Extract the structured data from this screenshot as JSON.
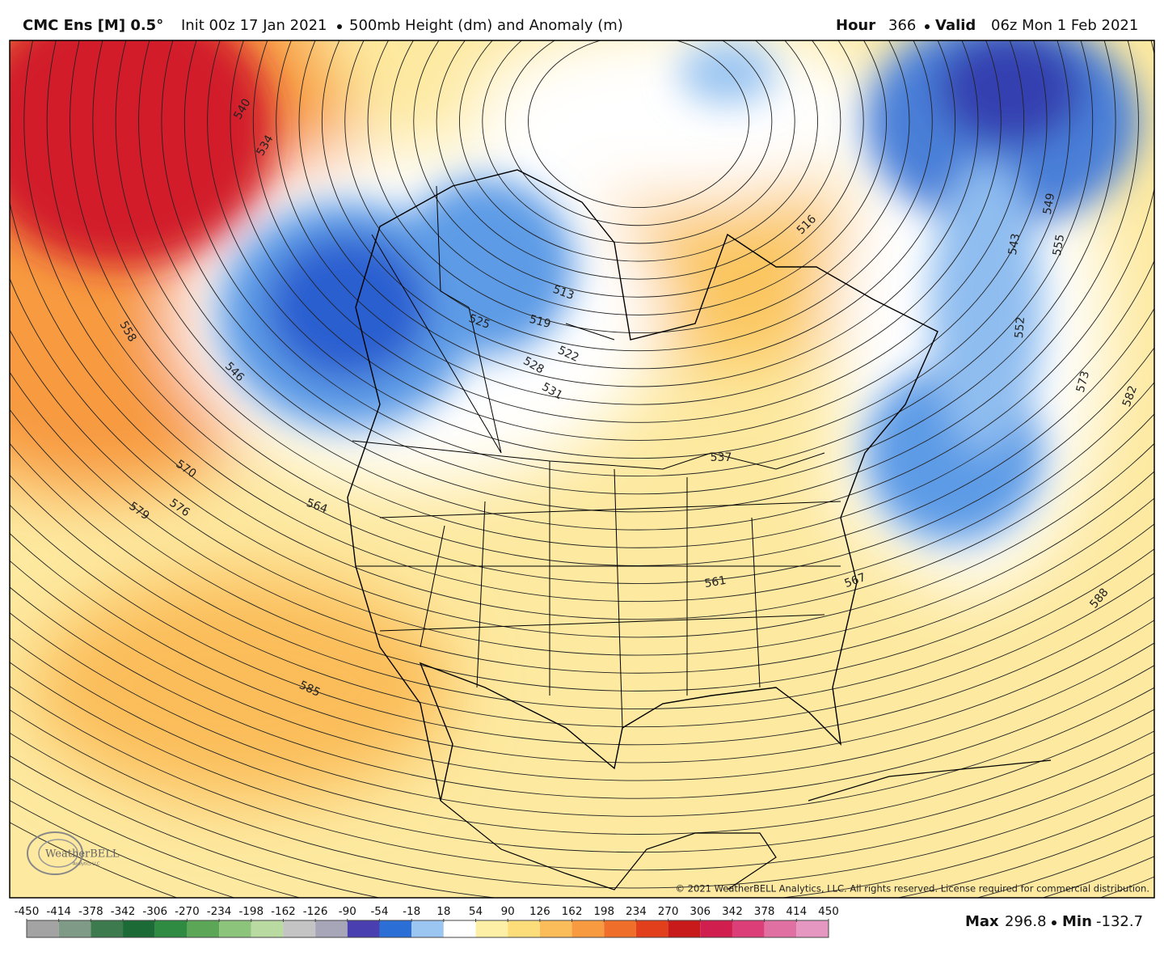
{
  "header": {
    "model": "CMC Ens [M] 0.5°",
    "init": "Init 00z 17 Jan 2021",
    "product": "500mb Height (dm) and Anomaly (m)",
    "hour_label": "Hour",
    "hour": "366",
    "valid_label": "Valid",
    "valid": "06z Mon 1 Feb 2021"
  },
  "contour_labels": [
    "540",
    "534",
    "558",
    "546",
    "570",
    "576",
    "579",
    "564",
    "585",
    "513",
    "519",
    "525",
    "522",
    "528",
    "531",
    "537",
    "516",
    "543",
    "549",
    "555",
    "552",
    "573",
    "582",
    "588",
    "561",
    "567"
  ],
  "copyright": "© 2021 WeatherBELL Analytics, LLC. All rights reserved. License required for commercial distribution.",
  "logo": {
    "name": "WeatherBELL",
    "sub": "Analytics LLC"
  },
  "colorbar": {
    "ticks": [
      -450,
      -414,
      -378,
      -342,
      -306,
      -270,
      -234,
      -198,
      -162,
      -126,
      -90,
      -54,
      -18,
      18,
      54,
      90,
      126,
      162,
      198,
      234,
      270,
      306,
      342,
      378,
      414,
      450
    ],
    "colors": [
      "#a3a3a3",
      "#7f9a86",
      "#3d7a4e",
      "#1c6a36",
      "#2f8a42",
      "#5ba657",
      "#8dc47b",
      "#b9dba2",
      "#c4c4c4",
      "#a6a6b8",
      "#4a3fb0",
      "#2a6ed6",
      "#9cc6f2",
      "#ffffff",
      "#fdf0a6",
      "#fddc7a",
      "#fbbd5a",
      "#f79a40",
      "#ef6e2a",
      "#e2401c",
      "#c81a1a",
      "#d01e4e",
      "#dc3f78",
      "#e06fa2",
      "#e597c2"
    ]
  },
  "stats": {
    "max_label": "Max",
    "max": 296.8,
    "min_label": "Min",
    "min": -132.7
  }
}
